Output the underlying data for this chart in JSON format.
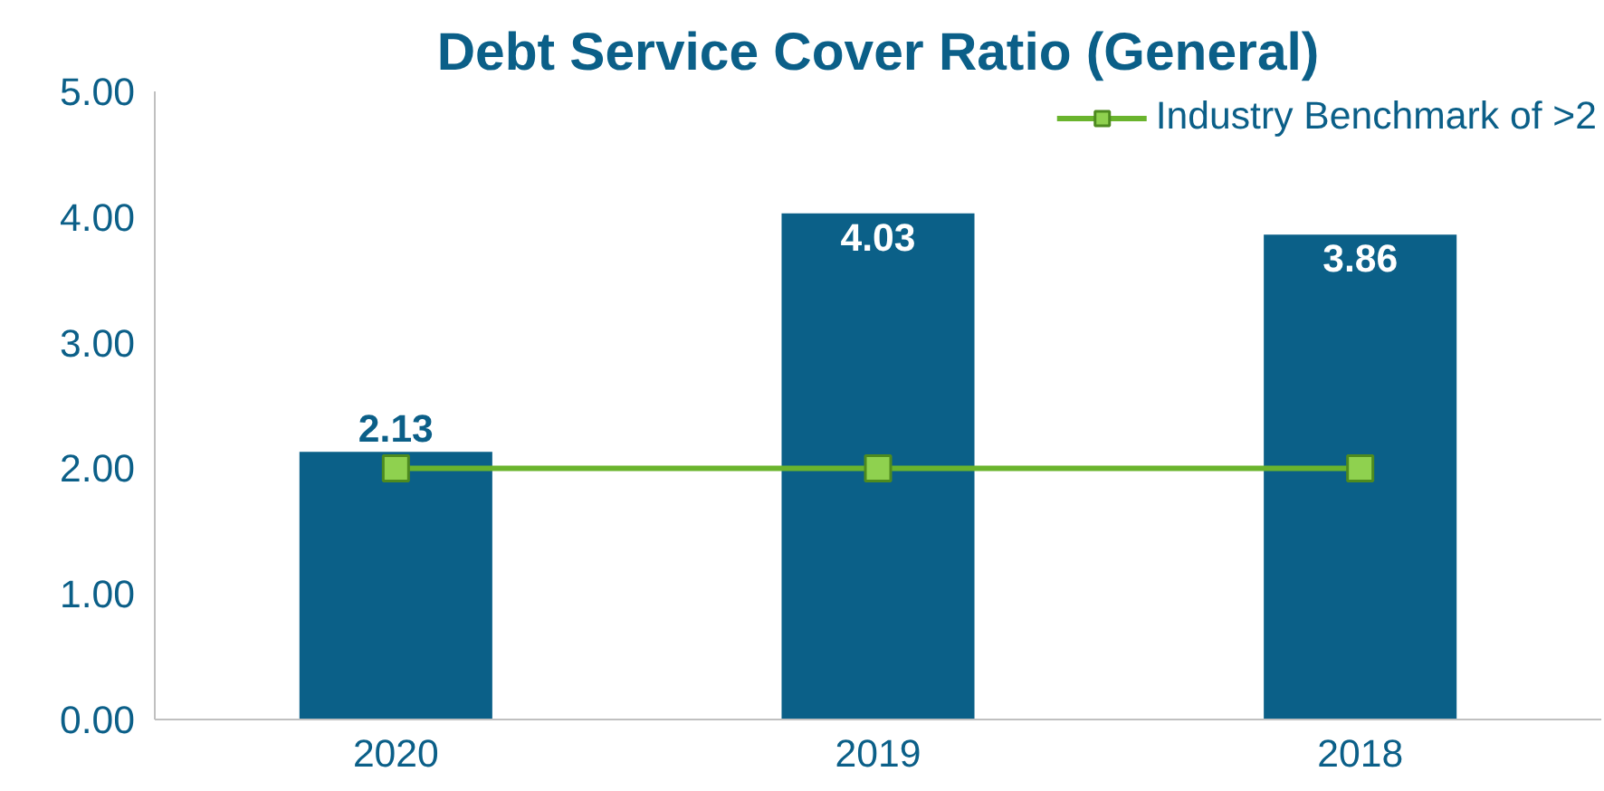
{
  "chart_data": {
    "type": "bar",
    "title": "Debt Service Cover Ratio (General)",
    "categories": [
      "2020",
      "2019",
      "2018"
    ],
    "series": [
      {
        "color": "#0b6088",
        "values": [
          2.13,
          4.03,
          3.86
        ],
        "value_labels": [
          "2.13",
          "4.03",
          "3.86"
        ]
      },
      {
        "type": "line",
        "name": "Industry Benchmark of >2",
        "color": "#6ab42d",
        "values": [
          2,
          2,
          2
        ],
        "marker": "square"
      }
    ],
    "ylim": [
      0,
      5
    ],
    "yticks": [
      {
        "value": 0,
        "label": "0.00"
      },
      {
        "value": 1,
        "label": "1.00"
      },
      {
        "value": 2,
        "label": "2.00"
      },
      {
        "value": 3,
        "label": "3.00"
      },
      {
        "value": 4,
        "label": "4.00"
      },
      {
        "value": 5,
        "label": "5.00"
      }
    ],
    "grid": false,
    "legend": "top right"
  }
}
